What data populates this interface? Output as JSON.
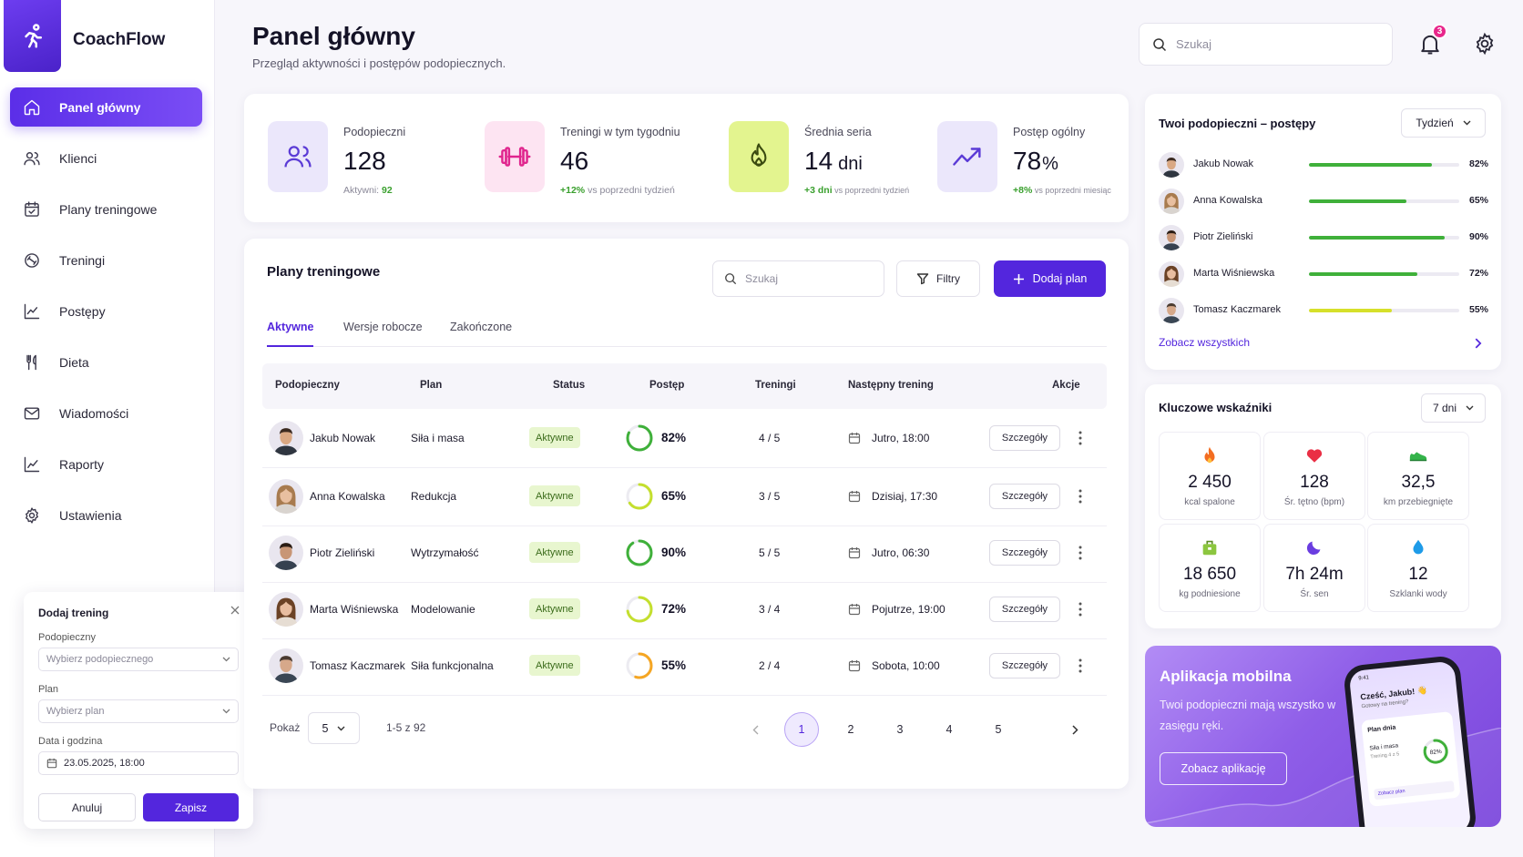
{
  "app": {
    "brand": "CoachFlow"
  },
  "sidebar": {
    "items": [
      {
        "label": "Panel główny",
        "icon": "home-icon",
        "active": true
      },
      {
        "label": "Klienci",
        "icon": "users-icon"
      },
      {
        "label": "Plany treningowe",
        "icon": "calendar-check-icon"
      },
      {
        "label": "Treningi",
        "icon": "dumbbell-icon"
      },
      {
        "label": "Postępy",
        "icon": "chart-line-icon"
      },
      {
        "label": "Dieta",
        "icon": "fork-knife-icon"
      },
      {
        "label": "Wiadomości",
        "icon": "mail-icon"
      },
      {
        "label": "Raporty",
        "icon": "report-chart-icon"
      },
      {
        "label": "Ustawienia",
        "icon": "gear-icon"
      }
    ]
  },
  "add_training": {
    "title": "Dodaj trening",
    "client_label": "Podopieczny",
    "client_placeholder": "Wybierz podopiecznego",
    "plan_label": "Plan",
    "plan_placeholder": "Wybierz plan",
    "date_label": "Data i godzina",
    "date_value": "23.05.2025, 18:00",
    "cancel": "Anuluj",
    "save": "Zapisz"
  },
  "header": {
    "title": "Panel główny",
    "subtitle": "Przegląd aktywności i postępów podopiecznych.",
    "search_placeholder": "Szukaj",
    "notifications": "3"
  },
  "stats": [
    {
      "label": "Podopieczni",
      "value": "128",
      "unit": "",
      "foot_value": "92",
      "foot_prefix": "Aktywni: ",
      "foot_suffix": ""
    },
    {
      "label": "Treningi w tym tygodniu",
      "value": "46",
      "unit": "",
      "foot_value": "+12%",
      "foot_prefix": "",
      "foot_suffix": " vs poprzedni tydzień"
    },
    {
      "label": "Średnia seria",
      "value": "14",
      "unit": "dni",
      "foot_value": "+3 dni",
      "foot_prefix": "",
      "foot_suffix": " vs poprzedni tydzień"
    },
    {
      "label": "Postęp ogólny",
      "value": "78",
      "unit": "%",
      "foot_value": "+8%",
      "foot_prefix": "",
      "foot_suffix": " vs poprzedni miesiąc"
    }
  ],
  "plans": {
    "title": "Plany treningowe",
    "search_placeholder": "Szukaj",
    "filter": "Filtry",
    "add": "Dodaj plan",
    "tabs": [
      "Aktywne",
      "Wersje robocze",
      "Zakończone"
    ],
    "columns": [
      "Podopieczny",
      "Plan",
      "Status",
      "Postęp",
      "Treningi",
      "Następny trening",
      "Akcje"
    ],
    "rows": [
      {
        "name": "Jakub Nowak",
        "plan": "Siła i masa",
        "status": "Aktywne",
        "progress": "82%",
        "progress_value": 82,
        "color": "#3fb03a",
        "trainings": "4 / 5",
        "next": "Jutro, 18:00",
        "action": "Szczegóły"
      },
      {
        "name": "Anna Kowalska",
        "plan": "Redukcja",
        "status": "Aktywne",
        "progress": "65%",
        "progress_value": 65,
        "color": "#c4df2e",
        "trainings": "3 / 5",
        "next": "Dzisiaj, 17:30",
        "action": "Szczegóły"
      },
      {
        "name": "Piotr Zieliński",
        "plan": "Wytrzymałość",
        "status": "Aktywne",
        "progress": "90%",
        "progress_value": 90,
        "color": "#3fb03a",
        "trainings": "5 / 5",
        "next": "Jutro, 06:30",
        "action": "Szczegóły"
      },
      {
        "name": "Marta Wiśniewska",
        "plan": "Modelowanie",
        "status": "Aktywne",
        "progress": "72%",
        "progress_value": 72,
        "color": "#c4df2e",
        "trainings": "3 / 4",
        "next": "Pojutrze, 19:00",
        "action": "Szczegóły"
      },
      {
        "name": "Tomasz Kaczmarek",
        "plan": "Siła funkcjonalna",
        "status": "Aktywne",
        "progress": "55%",
        "progress_value": 55,
        "color": "#f5a623",
        "trainings": "2 / 4",
        "next": "Sobota, 10:00",
        "action": "Szczegóły"
      }
    ],
    "show_label": "Pokaż",
    "show_value": "5",
    "range": "1-5 z 92",
    "pages": [
      "1",
      "2",
      "3",
      "4",
      "5"
    ],
    "current_page": "1"
  },
  "clients_progress": {
    "title": "Twoi podopieczni – postępy",
    "period": "Tydzień",
    "items": [
      {
        "name": "Jakub Nowak",
        "pct": "82%",
        "value": 82,
        "color": "#3fb03a"
      },
      {
        "name": "Anna Kowalska",
        "pct": "65%",
        "value": 65,
        "color": "#3fb03a"
      },
      {
        "name": "Piotr Zieliński",
        "pct": "90%",
        "value": 90,
        "color": "#3fb03a"
      },
      {
        "name": "Marta Wiśniewska",
        "pct": "72%",
        "value": 72,
        "color": "#3fb03a"
      },
      {
        "name": "Tomasz Kaczmarek",
        "pct": "55%",
        "value": 55,
        "color": "#d6e02a"
      }
    ],
    "see_all": "Zobacz wszystkich"
  },
  "kpi": {
    "title": "Kluczowe wskaźniki",
    "period": "7 dni",
    "items": [
      {
        "value": "2 450",
        "label": "kcal spalone",
        "icon": "fire-icon"
      },
      {
        "value": "128",
        "label": "Śr. tętno (bpm)",
        "icon": "heart-icon"
      },
      {
        "value": "32,5",
        "label": "km przebiegnięte",
        "icon": "shoe-icon"
      },
      {
        "value": "18 650",
        "label": "kg podniesione",
        "icon": "weight-bag-icon"
      },
      {
        "value": "7h 24m",
        "label": "Śr. sen",
        "icon": "moon-icon"
      },
      {
        "value": "12",
        "label": "Szklanki wody",
        "icon": "water-drop-icon"
      }
    ]
  },
  "promo": {
    "title": "Aplikacja mobilna",
    "text": "Twoi podopieczni mają wszystko w zasięgu ręki.",
    "button": "Zobacz aplikację",
    "phone_time": "9:41",
    "phone_hello": "Cześć, Jakub! 👋",
    "phone_ask": "Gotowy na trening?",
    "phone_plan": "Plan dnia",
    "phone_plan_name": "Siła i masa",
    "phone_training": "Trening 4 z 5",
    "phone_pct": "82%",
    "phone_link": "Zobacz plan"
  },
  "colors": {
    "accent": "#5326dd",
    "success": "#3fb03a",
    "warning": "#f5a623",
    "badge": "#e8268b"
  }
}
